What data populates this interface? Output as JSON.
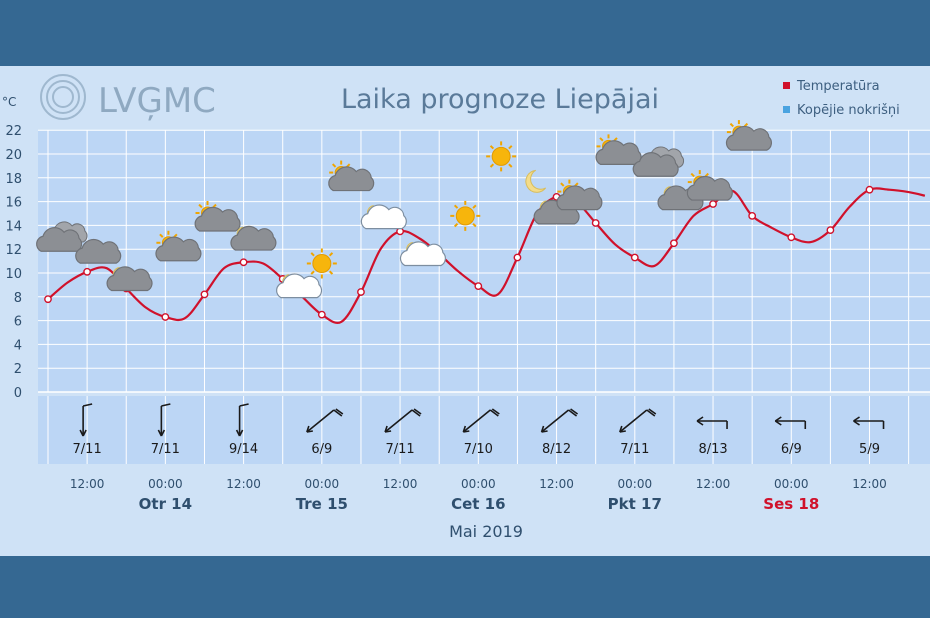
{
  "header": {
    "logo_text": "LVĢMC",
    "title": "Laika prognoze Liepājai",
    "unit": "°C"
  },
  "legend": {
    "temperature_label": "Temperatūra",
    "precip_label": "Kopējie nokrišņi"
  },
  "colors": {
    "temperature": "#d0112b",
    "precip": "#4aa3e0",
    "plot_bg": "#bcd6f5",
    "frame": "#3d6e96"
  },
  "chart_data": {
    "type": "line",
    "title": "Laika prognoze Liepājai",
    "ylabel": "°C",
    "ylim": [
      0,
      22
    ],
    "y_ticks": [
      0,
      2,
      4,
      6,
      8,
      10,
      12,
      14,
      16,
      18,
      20,
      22
    ],
    "grid": true,
    "legend_position": "top-right",
    "hours_from_start": [
      0,
      6,
      12,
      18,
      24,
      30,
      36,
      42,
      48,
      54,
      60,
      66,
      72,
      78,
      84,
      90,
      96,
      102,
      108,
      114,
      120,
      126,
      132,
      138,
      144,
      150,
      156
    ],
    "series": [
      {
        "name": "Temperatūra",
        "points": [
          {
            "h": 0,
            "v": 7.8
          },
          {
            "h": 6,
            "v": 10.1
          },
          {
            "h": 12,
            "v": 8.7
          },
          {
            "h": 18,
            "v": 6.3
          },
          {
            "h": 24,
            "v": 8.2
          },
          {
            "h": 30,
            "v": 10.9
          },
          {
            "h": 36,
            "v": 9.5
          },
          {
            "h": 42,
            "v": 6.5
          },
          {
            "h": 48,
            "v": 8.4
          },
          {
            "h": 54,
            "v": 13.5
          },
          {
            "h": 60,
            "v": 11.6
          },
          {
            "h": 66,
            "v": 8.9
          },
          {
            "h": 72,
            "v": 11.3
          },
          {
            "h": 78,
            "v": 16.4
          },
          {
            "h": 84,
            "v": 14.2
          },
          {
            "h": 90,
            "v": 11.3
          },
          {
            "h": 96,
            "v": 12.5
          },
          {
            "h": 102,
            "v": 15.8
          },
          {
            "h": 108,
            "v": 14.8
          },
          {
            "h": 114,
            "v": 13.0
          },
          {
            "h": 120,
            "v": 13.6
          },
          {
            "h": 126,
            "v": 17.0
          }
        ],
        "curve": [
          {
            "h": 0,
            "v": 7.8
          },
          {
            "h": 3,
            "v": 9.2
          },
          {
            "h": 6,
            "v": 10.1
          },
          {
            "h": 9,
            "v": 10.4
          },
          {
            "h": 12,
            "v": 8.7
          },
          {
            "h": 15,
            "v": 7.1
          },
          {
            "h": 18,
            "v": 6.3
          },
          {
            "h": 21,
            "v": 6.2
          },
          {
            "h": 24,
            "v": 8.2
          },
          {
            "h": 27,
            "v": 10.4
          },
          {
            "h": 30,
            "v": 10.9
          },
          {
            "h": 33,
            "v": 10.8
          },
          {
            "h": 36,
            "v": 9.5
          },
          {
            "h": 39,
            "v": 8.0
          },
          {
            "h": 42,
            "v": 6.5
          },
          {
            "h": 45,
            "v": 5.9
          },
          {
            "h": 48,
            "v": 8.4
          },
          {
            "h": 51,
            "v": 12.0
          },
          {
            "h": 54,
            "v": 13.5
          },
          {
            "h": 57,
            "v": 12.9
          },
          {
            "h": 60,
            "v": 11.6
          },
          {
            "h": 63,
            "v": 10.1
          },
          {
            "h": 66,
            "v": 8.9
          },
          {
            "h": 69,
            "v": 8.2
          },
          {
            "h": 72,
            "v": 11.3
          },
          {
            "h": 75,
            "v": 15.0
          },
          {
            "h": 78,
            "v": 16.4
          },
          {
            "h": 81,
            "v": 16.0
          },
          {
            "h": 84,
            "v": 14.2
          },
          {
            "h": 87,
            "v": 12.4
          },
          {
            "h": 90,
            "v": 11.3
          },
          {
            "h": 93,
            "v": 10.6
          },
          {
            "h": 96,
            "v": 12.5
          },
          {
            "h": 99,
            "v": 14.8
          },
          {
            "h": 102,
            "v": 15.8
          },
          {
            "h": 105,
            "v": 16.9
          },
          {
            "h": 108,
            "v": 14.8
          },
          {
            "h": 111,
            "v": 13.8
          },
          {
            "h": 114,
            "v": 13.0
          },
          {
            "h": 117,
            "v": 12.6
          },
          {
            "h": 120,
            "v": 13.6
          },
          {
            "h": 123,
            "v": 15.6
          },
          {
            "h": 126,
            "v": 17.0
          },
          {
            "h": 129,
            "v": 17.0
          },
          {
            "h": 132,
            "v": 16.8
          },
          {
            "h": 134.5,
            "v": 16.5
          }
        ]
      }
    ],
    "weather_icons": [
      {
        "h": 2,
        "v": 12.5,
        "icon": "overcast-cloud-icon"
      },
      {
        "h": 8,
        "v": 11.5,
        "icon": "cloud-icon"
      },
      {
        "h": 12.5,
        "v": 9.2,
        "icon": "night-cloud-icon"
      },
      {
        "h": 20,
        "v": 11.7,
        "icon": "partly-cloudy-day-icon"
      },
      {
        "h": 26,
        "v": 14.2,
        "icon": "partly-cloudy-day-icon"
      },
      {
        "h": 31.5,
        "v": 12.6,
        "icon": "night-cloud-icon"
      },
      {
        "h": 38.5,
        "v": 8.6,
        "icon": "night-white-cloud-icon"
      },
      {
        "h": 42,
        "v": 10.8,
        "icon": "sun-icon"
      },
      {
        "h": 46.5,
        "v": 17.6,
        "icon": "partly-cloudy-day-icon"
      },
      {
        "h": 51.5,
        "v": 14.4,
        "icon": "night-white-cloud-icon"
      },
      {
        "h": 57.5,
        "v": 11.3,
        "icon": "night-white-cloud-icon"
      },
      {
        "h": 64,
        "v": 14.8,
        "icon": "sun-icon"
      },
      {
        "h": 69.5,
        "v": 19.8,
        "icon": "sun-icon"
      },
      {
        "h": 74.5,
        "v": 17.7,
        "icon": "moon-icon"
      },
      {
        "h": 78,
        "v": 14.8,
        "icon": "night-cloud-icon"
      },
      {
        "h": 81.5,
        "v": 16.0,
        "icon": "partly-cloudy-day-icon"
      },
      {
        "h": 87.5,
        "v": 19.8,
        "icon": "partly-cloudy-day-icon"
      },
      {
        "h": 93.5,
        "v": 18.8,
        "icon": "overcast-cloud-icon"
      },
      {
        "h": 97,
        "v": 16.0,
        "icon": "night-cloud-icon"
      },
      {
        "h": 101.5,
        "v": 16.8,
        "icon": "partly-cloudy-day-icon"
      },
      {
        "h": 107.5,
        "v": 21.0,
        "icon": "partly-cloudy-day-icon"
      }
    ],
    "wind": [
      {
        "h": 6,
        "label": "7/11",
        "dir": "S"
      },
      {
        "h": 18,
        "label": "7/11",
        "dir": "S"
      },
      {
        "h": 30,
        "label": "9/14",
        "dir": "S"
      },
      {
        "h": 42,
        "label": "6/9",
        "dir": "SW"
      },
      {
        "h": 54,
        "label": "7/11",
        "dir": "SW"
      },
      {
        "h": 66,
        "label": "7/10",
        "dir": "SW"
      },
      {
        "h": 78,
        "label": "8/12",
        "dir": "SW"
      },
      {
        "h": 90,
        "label": "7/11",
        "dir": "SW"
      },
      {
        "h": 102,
        "label": "8/13",
        "dir": "W"
      },
      {
        "h": 114,
        "label": "6/9",
        "dir": "W"
      },
      {
        "h": 126,
        "label": "5/9",
        "dir": "W"
      }
    ],
    "x_axis": {
      "hour_labels": [
        {
          "h": 6,
          "text": "12:00"
        },
        {
          "h": 18,
          "text": "00:00"
        },
        {
          "h": 30,
          "text": "12:00"
        },
        {
          "h": 42,
          "text": "00:00"
        },
        {
          "h": 54,
          "text": "12:00"
        },
        {
          "h": 66,
          "text": "00:00"
        },
        {
          "h": 78,
          "text": "12:00"
        },
        {
          "h": 90,
          "text": "00:00"
        },
        {
          "h": 102,
          "text": "12:00"
        },
        {
          "h": 114,
          "text": "00:00"
        },
        {
          "h": 126,
          "text": "12:00"
        }
      ],
      "day_labels": [
        {
          "h": 18,
          "text": "Otr 14",
          "weekend": false
        },
        {
          "h": 42,
          "text": "Tre 15",
          "weekend": false
        },
        {
          "h": 66,
          "text": "Cet 16",
          "weekend": false
        },
        {
          "h": 90,
          "text": "Pkt 17",
          "weekend": false
        },
        {
          "h": 114,
          "text": "Ses 18",
          "weekend": true
        }
      ],
      "month_label": "Mai 2019"
    }
  }
}
